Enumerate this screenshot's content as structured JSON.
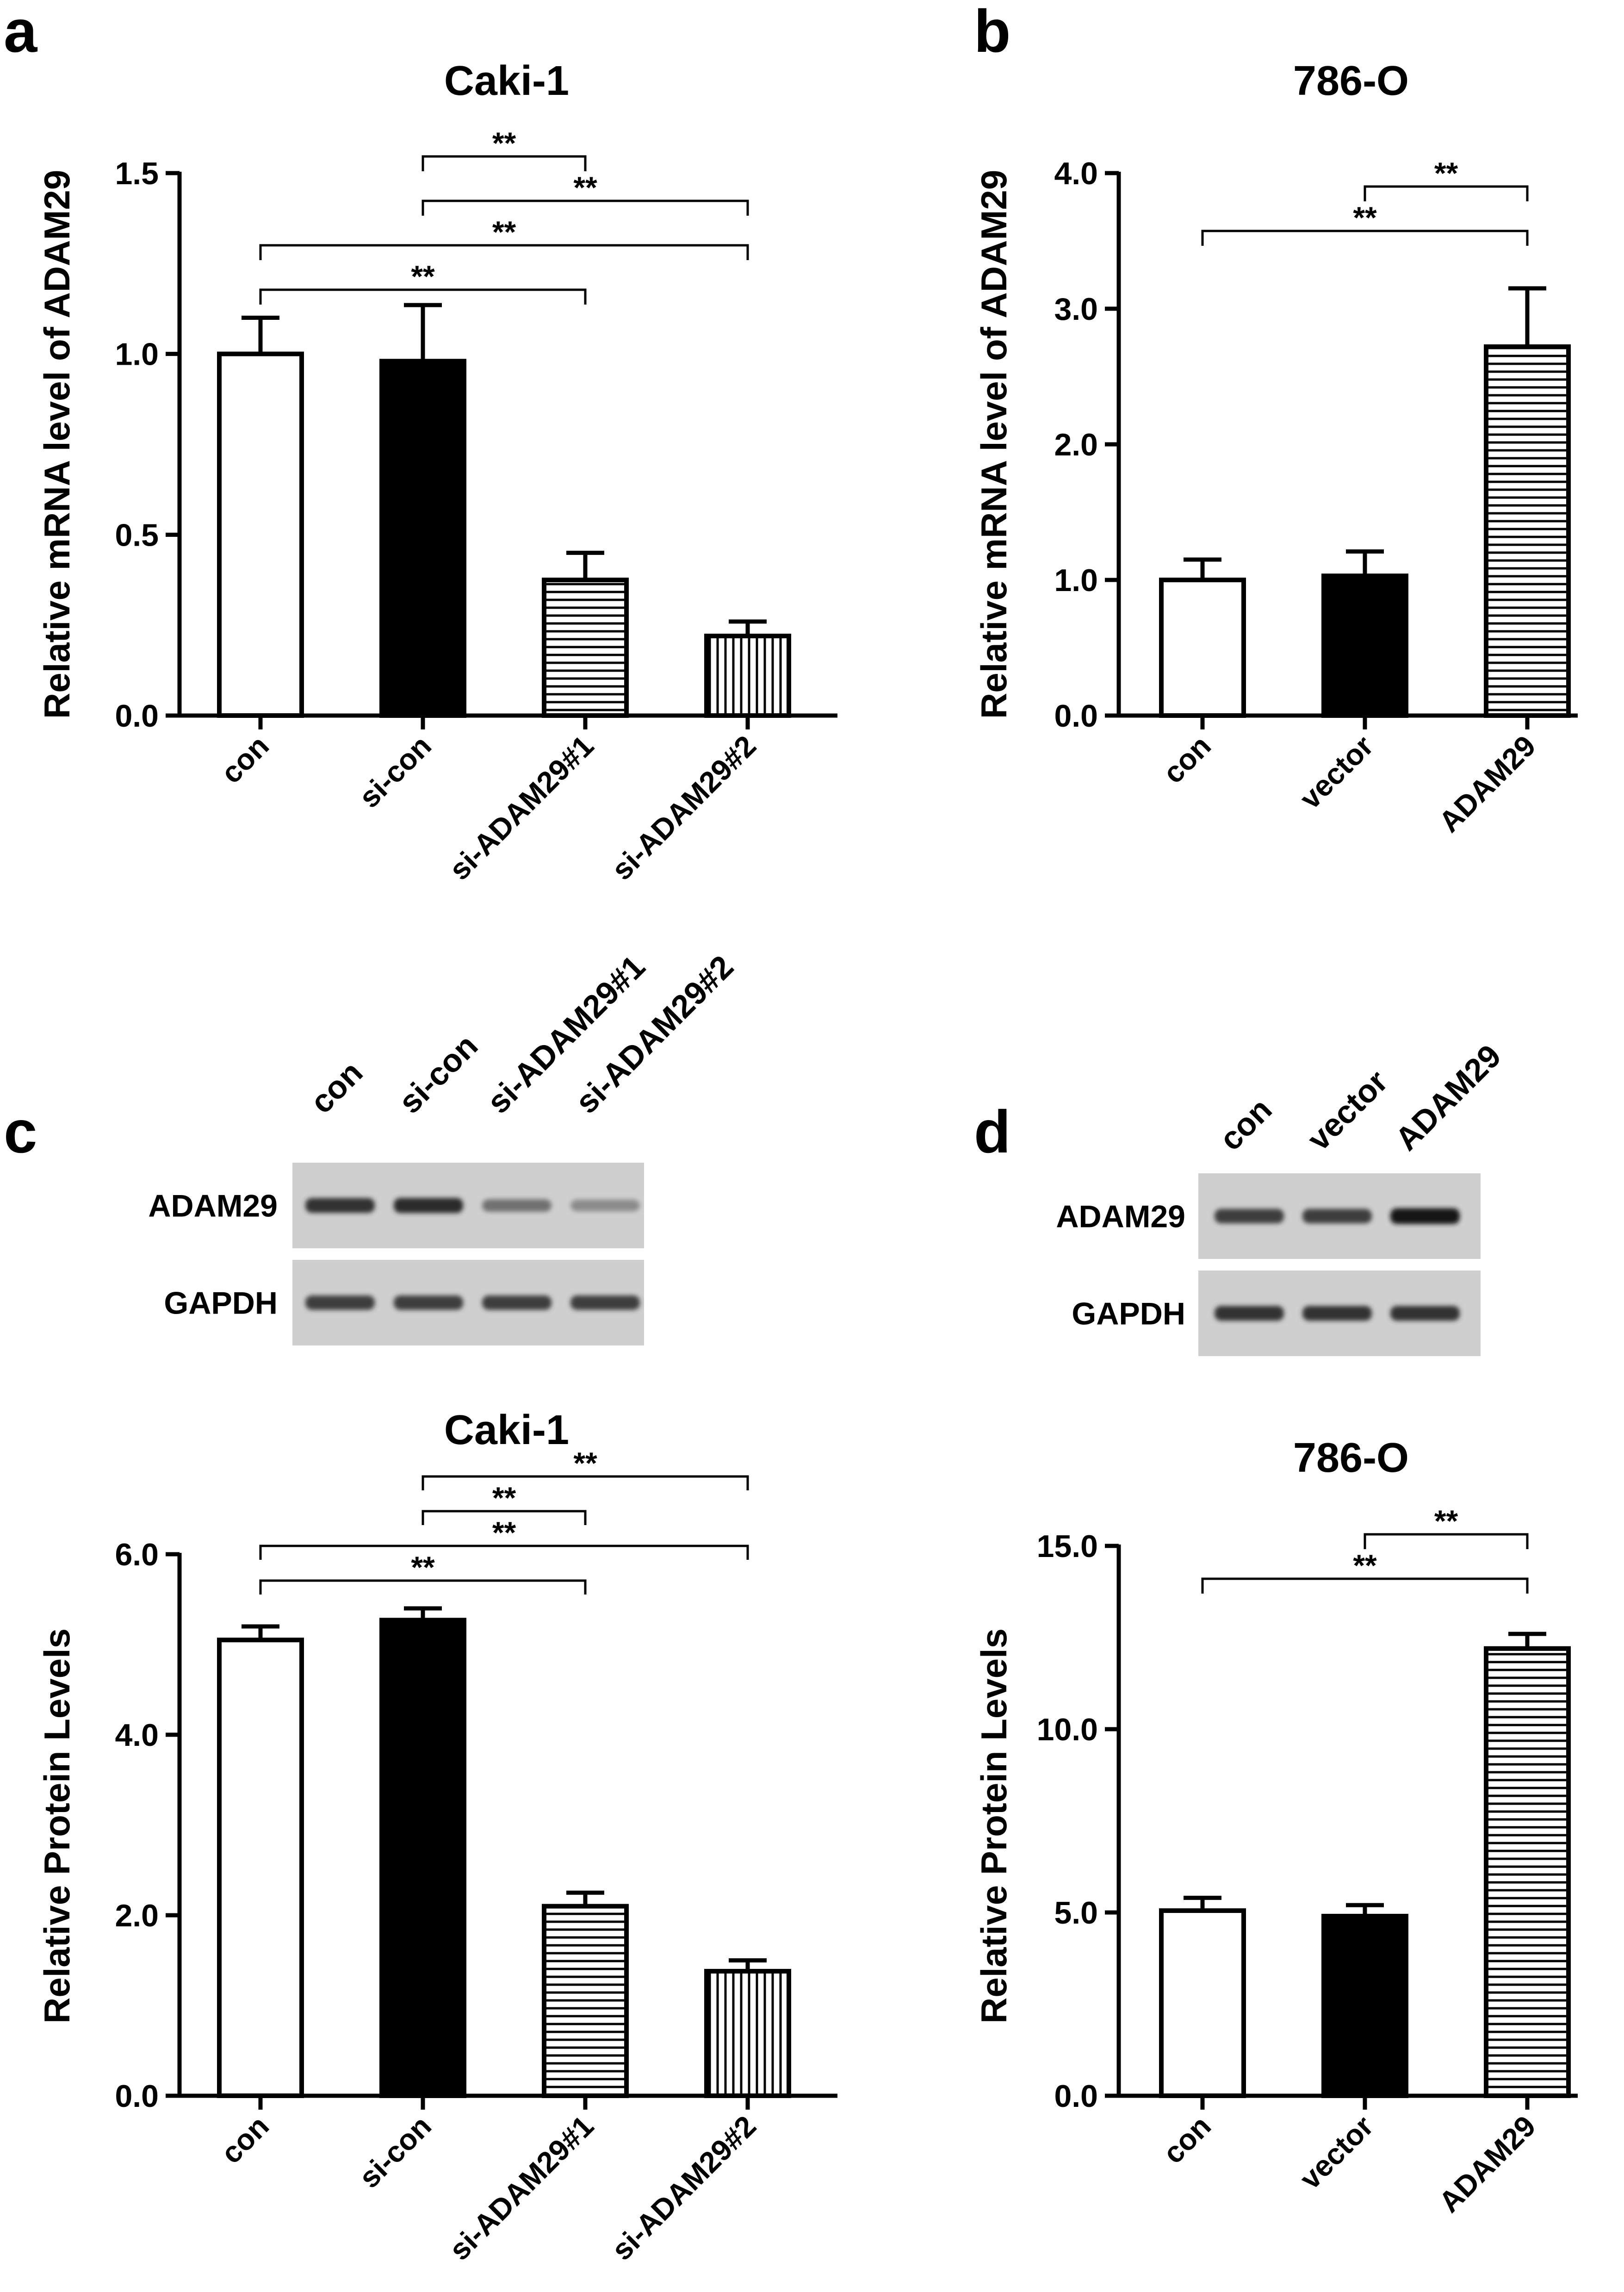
{
  "panel_letters": [
    "a",
    "b",
    "c",
    "d"
  ],
  "blots": [
    {
      "lanes": [
        "con",
        "si-con",
        "si-ADAM29#1",
        "si-ADAM29#2"
      ],
      "rows": [
        {
          "label": "ADAM29",
          "intensity": [
            0.85,
            0.9,
            0.5,
            0.35
          ]
        },
        {
          "label": "GAPDH",
          "intensity": [
            0.8,
            0.8,
            0.8,
            0.8
          ]
        }
      ]
    },
    {
      "lanes": [
        "con",
        "vector",
        "ADAM29"
      ],
      "rows": [
        {
          "label": "ADAM29",
          "intensity": [
            0.8,
            0.8,
            1.0
          ]
        },
        {
          "label": "GAPDH",
          "intensity": [
            0.85,
            0.85,
            0.85
          ]
        }
      ]
    }
  ],
  "chart_data": [
    {
      "panel": "a",
      "type": "bar",
      "title": "Caki-1",
      "ylabel": "Relative mRNA level of ADAM29",
      "ylim": [
        0,
        1.5
      ],
      "yticks": [
        "0.0",
        "0.5",
        "1.0",
        "1.5"
      ],
      "categories": [
        "con",
        "si-con",
        "si-ADAM29#1",
        "si-ADAM29#2"
      ],
      "values": [
        1.0,
        0.98,
        0.375,
        0.22
      ],
      "errors": [
        0.1,
        0.155,
        0.075,
        0.04
      ],
      "fills": [
        "white",
        "black",
        "hlines",
        "vlines"
      ],
      "significance": [
        {
          "from": 1,
          "to": 2,
          "label": "**"
        },
        {
          "from": 1,
          "to": 3,
          "label": "**"
        },
        {
          "from": 0,
          "to": 3,
          "label": "**"
        },
        {
          "from": 0,
          "to": 2,
          "label": "**"
        }
      ]
    },
    {
      "panel": "b",
      "type": "bar",
      "title": "786-O",
      "ylabel": "Relative mRNA level of ADAM29",
      "ylim": [
        0,
        4.0
      ],
      "yticks": [
        "0.0",
        "1.0",
        "2.0",
        "3.0",
        "4.0"
      ],
      "categories": [
        "con",
        "vector",
        "ADAM29"
      ],
      "values": [
        1.0,
        1.03,
        2.72
      ],
      "errors": [
        0.15,
        0.18,
        0.43
      ],
      "fills": [
        "white",
        "black",
        "hlines"
      ],
      "significance": [
        {
          "from": 1,
          "to": 2,
          "label": "**"
        },
        {
          "from": 0,
          "to": 2,
          "label": "**"
        }
      ]
    },
    {
      "panel": "c",
      "type": "bar",
      "title": "Caki-1",
      "ylabel": "Relative Protein Levels",
      "ylim": [
        0,
        6.0
      ],
      "yticks": [
        "0.0",
        "2.0",
        "4.0",
        "6.0"
      ],
      "categories": [
        "con",
        "si-con",
        "si-ADAM29#1",
        "si-ADAM29#2"
      ],
      "values": [
        5.05,
        5.27,
        2.1,
        1.38
      ],
      "errors": [
        0.15,
        0.13,
        0.15,
        0.12
      ],
      "fills": [
        "white",
        "black",
        "hlines",
        "vlines"
      ],
      "significance": [
        {
          "from": 1,
          "to": 3,
          "label": "**"
        },
        {
          "from": 1,
          "to": 2,
          "label": "**"
        },
        {
          "from": 0,
          "to": 3,
          "label": "**"
        },
        {
          "from": 0,
          "to": 2,
          "label": "**"
        }
      ]
    },
    {
      "panel": "d",
      "type": "bar",
      "title": "786-O",
      "ylabel": "Relative Protein Levels",
      "ylim": [
        0,
        15.0
      ],
      "yticks": [
        "0.0",
        "5.0",
        "10.0",
        "15.0"
      ],
      "categories": [
        "con",
        "vector",
        "ADAM29"
      ],
      "values": [
        5.05,
        4.9,
        12.2
      ],
      "errors": [
        0.35,
        0.3,
        0.4
      ],
      "fills": [
        "white",
        "black",
        "hlines"
      ],
      "significance": [
        {
          "from": 1,
          "to": 2,
          "label": "**"
        },
        {
          "from": 0,
          "to": 2,
          "label": "**"
        }
      ]
    }
  ]
}
